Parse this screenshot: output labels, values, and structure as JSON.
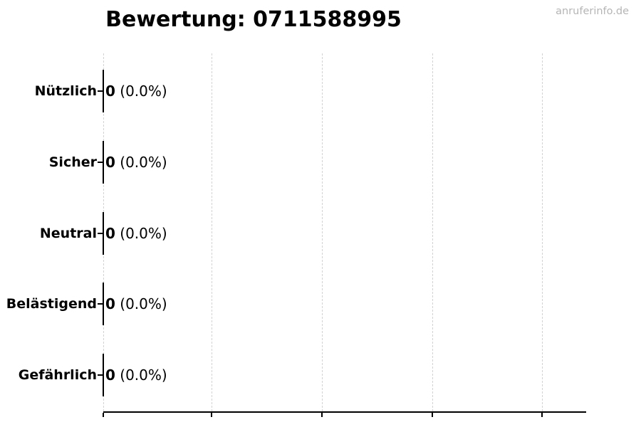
{
  "title": "Bewertung: 0711588995",
  "watermark": "anruferinfo.de",
  "colors": {
    "text": "#000000",
    "axis": "#000000",
    "bar_edge": "#000000",
    "grid": "#d2d2d2",
    "watermark": "#b5b5b5",
    "background": "#ffffff"
  },
  "chart_data": {
    "type": "bar",
    "orientation": "horizontal",
    "title": "Bewertung: 0711588995",
    "categories": [
      "Nützlich",
      "Sicher",
      "Neutral",
      "Belästigend",
      "Gefährlich"
    ],
    "values": [
      0,
      0,
      0,
      0,
      0
    ],
    "percent_labels": [
      "0.0%",
      "0.0%",
      "0.0%",
      "0.0%",
      "0.0%"
    ],
    "value_labels": [
      "0 (0.0%)",
      "0 (0.0%)",
      "0 (0.0%)",
      "0 (0.0%)",
      "0 (0.0%)"
    ],
    "xlabel": "",
    "ylabel": "",
    "grid": "vertical-dashed",
    "legend": "none",
    "x_axis": {
      "tick_count": 5,
      "tick_labels_visible": false
    },
    "xlim_note": "all bars zero-width; only bar edges visible at x=0"
  }
}
